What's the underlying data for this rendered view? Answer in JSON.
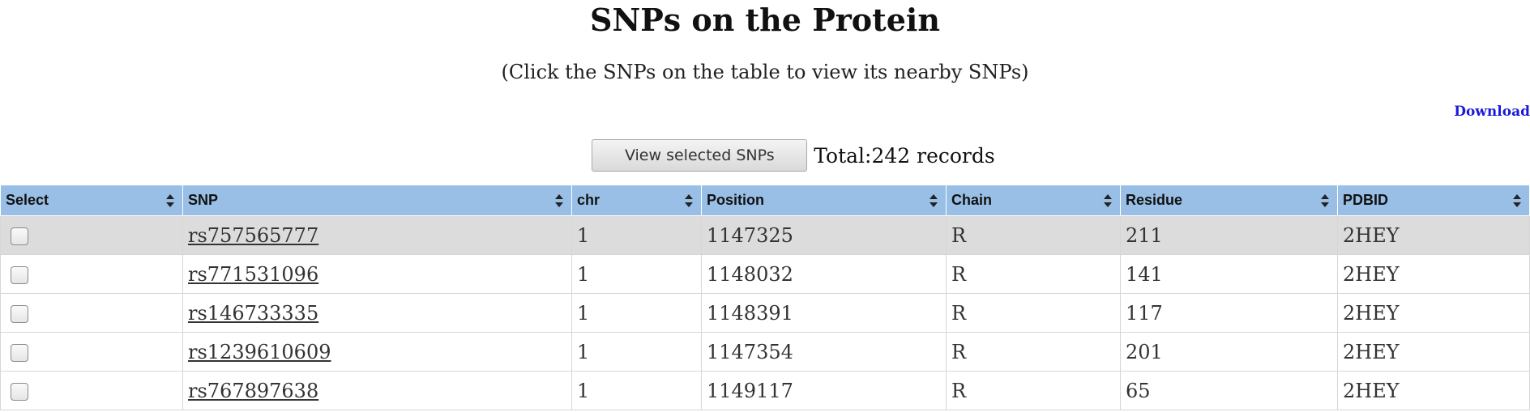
{
  "page": {
    "title": "SNPs on the Protein",
    "subtitle": "(Click the SNPs on the table to view its nearby SNPs)",
    "download_label": "Download"
  },
  "toolbar": {
    "view_button_label": "View selected SNPs",
    "total_text": "Total:242 records"
  },
  "table": {
    "headers": [
      "Select",
      "SNP",
      "chr",
      "Position",
      "Chain",
      "Residue",
      "PDBID"
    ],
    "rows": [
      {
        "snp": "rs757565777",
        "chr": "1",
        "position": "1147325",
        "chain": "R",
        "residue": "211",
        "pdbid": "2HEY",
        "selected": false
      },
      {
        "snp": "rs771531096",
        "chr": "1",
        "position": "1148032",
        "chain": "R",
        "residue": "141",
        "pdbid": "2HEY",
        "selected": false
      },
      {
        "snp": "rs146733335",
        "chr": "1",
        "position": "1148391",
        "chain": "R",
        "residue": "117",
        "pdbid": "2HEY",
        "selected": false
      },
      {
        "snp": "rs1239610609",
        "chr": "1",
        "position": "1147354",
        "chain": "R",
        "residue": "201",
        "pdbid": "2HEY",
        "selected": false
      },
      {
        "snp": "rs767897638",
        "chr": "1",
        "position": "1149117",
        "chain": "R",
        "residue": "65",
        "pdbid": "2HEY",
        "selected": false
      }
    ]
  },
  "colors": {
    "header_bg": "#99bfe6",
    "row_odd_bg": "#dcdcdc",
    "row_even_bg": "#ffffff",
    "download_link": "#1a1adb"
  },
  "icons": {
    "sort": "sort-icon",
    "checkbox": "checkbox-icon"
  }
}
